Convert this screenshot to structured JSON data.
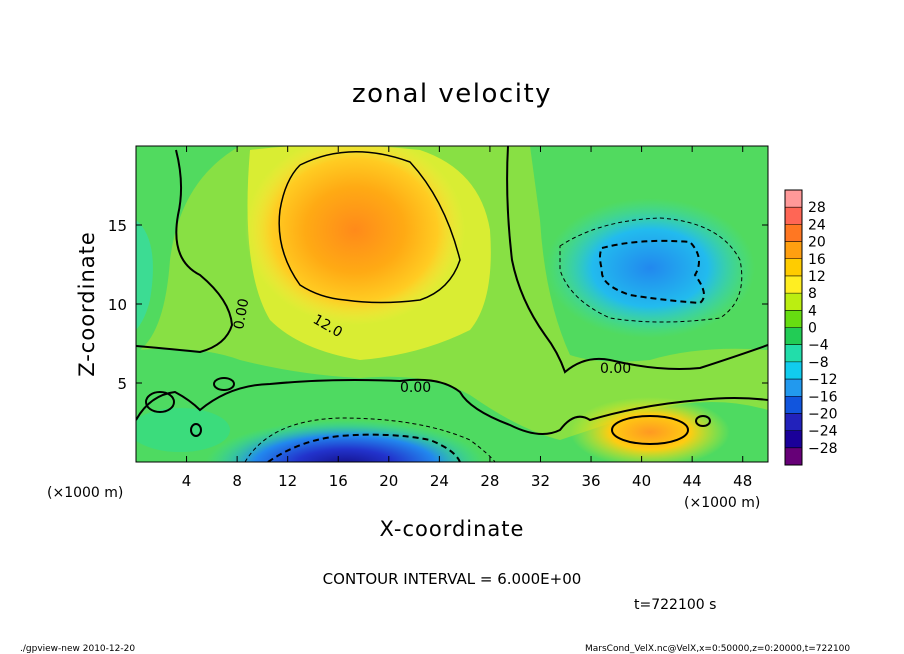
{
  "chart_data": {
    "type": "heatmap",
    "title": "zonal velocity",
    "xlabel": "X-coordinate",
    "ylabel": "Z-coordinate",
    "x_unit": "(×1000 m)",
    "xlim": [
      0,
      50
    ],
    "ylim": [
      0,
      20
    ],
    "x_ticks": [
      4,
      8,
      12,
      16,
      20,
      24,
      28,
      32,
      36,
      40,
      44,
      48
    ],
    "y_ticks": [
      5,
      10,
      15
    ],
    "colorbar": {
      "levels": [
        28,
        24,
        20,
        16,
        12,
        8,
        4,
        0,
        -4,
        -8,
        -12,
        -16,
        -20,
        -24,
        -28
      ],
      "colors": [
        "#ff9999",
        "#ff6655",
        "#ff7722",
        "#ff9f10",
        "#ffcc00",
        "#ffee22",
        "#bbee11",
        "#66dd11",
        "#22cc55",
        "#22ddaa",
        "#11ccee",
        "#2299ee",
        "#1155dd",
        "#2222bb",
        "#1a0099",
        "#660077"
      ]
    },
    "contour_interval_text": "CONTOUR INTERVAL = 6.000E+00",
    "contour_labels": [
      "0.00",
      "12.0",
      "0.00",
      "0.00"
    ],
    "time_text": "t=722100 s",
    "features": [
      {
        "name": "jet-max",
        "x": 17,
        "z": 14.5,
        "value": 16
      },
      {
        "name": "surface-min",
        "x": 16,
        "z": 0.5,
        "value": -22
      },
      {
        "name": "upper-right-min",
        "x": 40.5,
        "z": 12.5,
        "value": -12
      },
      {
        "name": "lower-right-max",
        "x": 41,
        "z": 1.8,
        "value": 16
      }
    ]
  },
  "footer": {
    "left": "./gpview-new   2010-12-20",
    "right": "MarsCond_VelX.nc@VelX,x=0:50000,z=0:20000,t=722100"
  }
}
